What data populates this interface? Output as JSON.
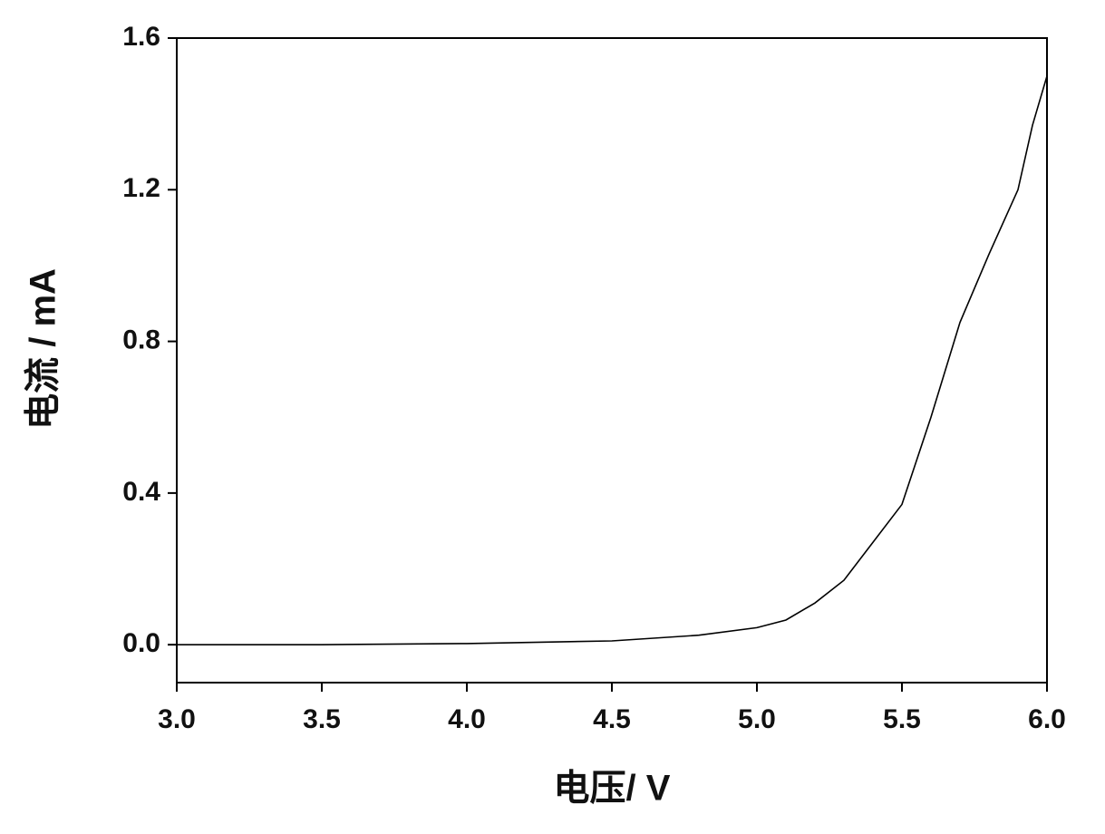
{
  "chart_data": {
    "type": "line",
    "x_label": "电压/ V",
    "y_label": "电流  / mA",
    "x": [
      3.0,
      3.5,
      4.0,
      4.5,
      4.8,
      5.0,
      5.1,
      5.2,
      5.3,
      5.4,
      5.5,
      5.6,
      5.7,
      5.8,
      5.9,
      5.95,
      6.0
    ],
    "series": [
      {
        "color": "#000000",
        "values": [
          0.0,
          0.0,
          0.003,
          0.01,
          0.025,
          0.045,
          0.065,
          0.11,
          0.17,
          0.27,
          0.37,
          0.6,
          0.85,
          1.03,
          1.2,
          1.37,
          1.5
        ]
      }
    ],
    "xlim": [
      3.0,
      6.0
    ],
    "ylim": [
      -0.1,
      1.6
    ],
    "xticks": [
      {
        "value": 3,
        "label": "3.0"
      },
      3.5,
      {
        "value": 4,
        "label": "4.0"
      },
      4.5,
      {
        "value": 5,
        "label": "5.0"
      },
      5.5,
      {
        "value": 6,
        "label": "6.0"
      }
    ],
    "yticks": [
      {
        "value": 0,
        "label": "0.0"
      },
      0.4,
      0.8,
      1.2,
      1.6
    ]
  }
}
